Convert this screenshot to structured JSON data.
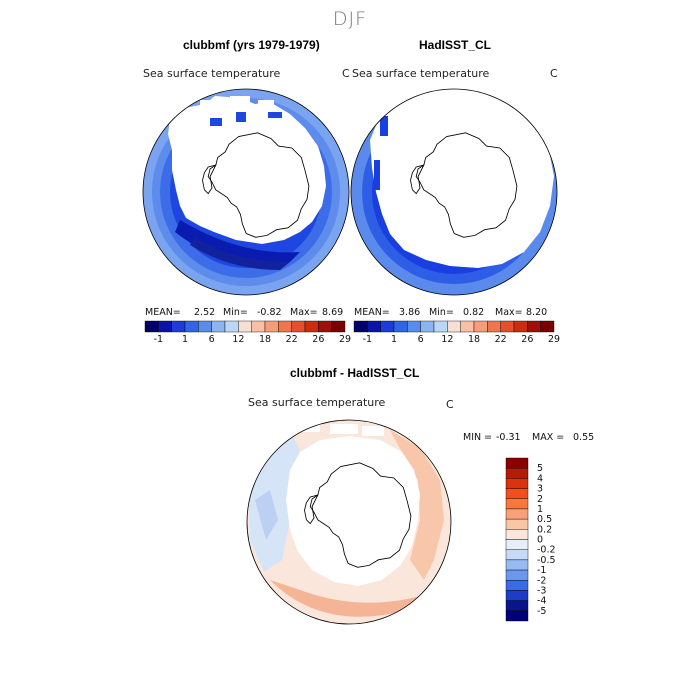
{
  "season": "DJF",
  "panels": [
    {
      "title": "clubbmf (yrs 1979-1979)",
      "variable": "Sea surface temperature",
      "units": "C",
      "stats": {
        "mean_label": "MEAN=",
        "mean": "2.52",
        "min_label": "Min=",
        "min": "-0.82",
        "max_label": "Max=",
        "max": "8.69"
      }
    },
    {
      "title": "HadISST_CL",
      "variable": "Sea surface temperature",
      "units": "C",
      "stats": {
        "mean_label": "MEAN=",
        "mean": "3.86",
        "min_label": "Min=",
        "min": "0.82",
        "max_label": "Max=",
        "max": "8.20"
      }
    },
    {
      "title": "clubbmf - HadISST_CL",
      "variable": "Sea surface temperature",
      "units": "C",
      "stats": {
        "min_label": "MIN =",
        "min": "-0.31",
        "max_label": "MAX =",
        "max": "0.55"
      }
    }
  ],
  "colorbar_abs": {
    "ticks": [
      "-1",
      "1",
      "6",
      "12",
      "18",
      "22",
      "26",
      "29"
    ],
    "colors": [
      "#00006b",
      "#0a14a8",
      "#1e3cd8",
      "#3264e6",
      "#5a8cee",
      "#8cb4f2",
      "#bcd6f6",
      "#f6e0d4",
      "#f8c0a4",
      "#f69c78",
      "#f07650",
      "#e4502c",
      "#cc2c10",
      "#a0100a",
      "#780000"
    ]
  },
  "colorbar_diff": {
    "labels": [
      "5",
      "4",
      "3",
      "2",
      "1",
      "0.5",
      "0.2",
      "0",
      "-0.2",
      "-0.5",
      "-1",
      "-2",
      "-3",
      "-4",
      "-5"
    ],
    "colors": [
      "#8b0000",
      "#b81a0a",
      "#dc320e",
      "#f0501e",
      "#f6783c",
      "#f8a078",
      "#fac6a6",
      "#fae6da",
      "#e6eefa",
      "#c6daf6",
      "#96baf2",
      "#6a98ee",
      "#3c6ae6",
      "#1e3cc8",
      "#0a148c",
      "#000078"
    ]
  }
}
